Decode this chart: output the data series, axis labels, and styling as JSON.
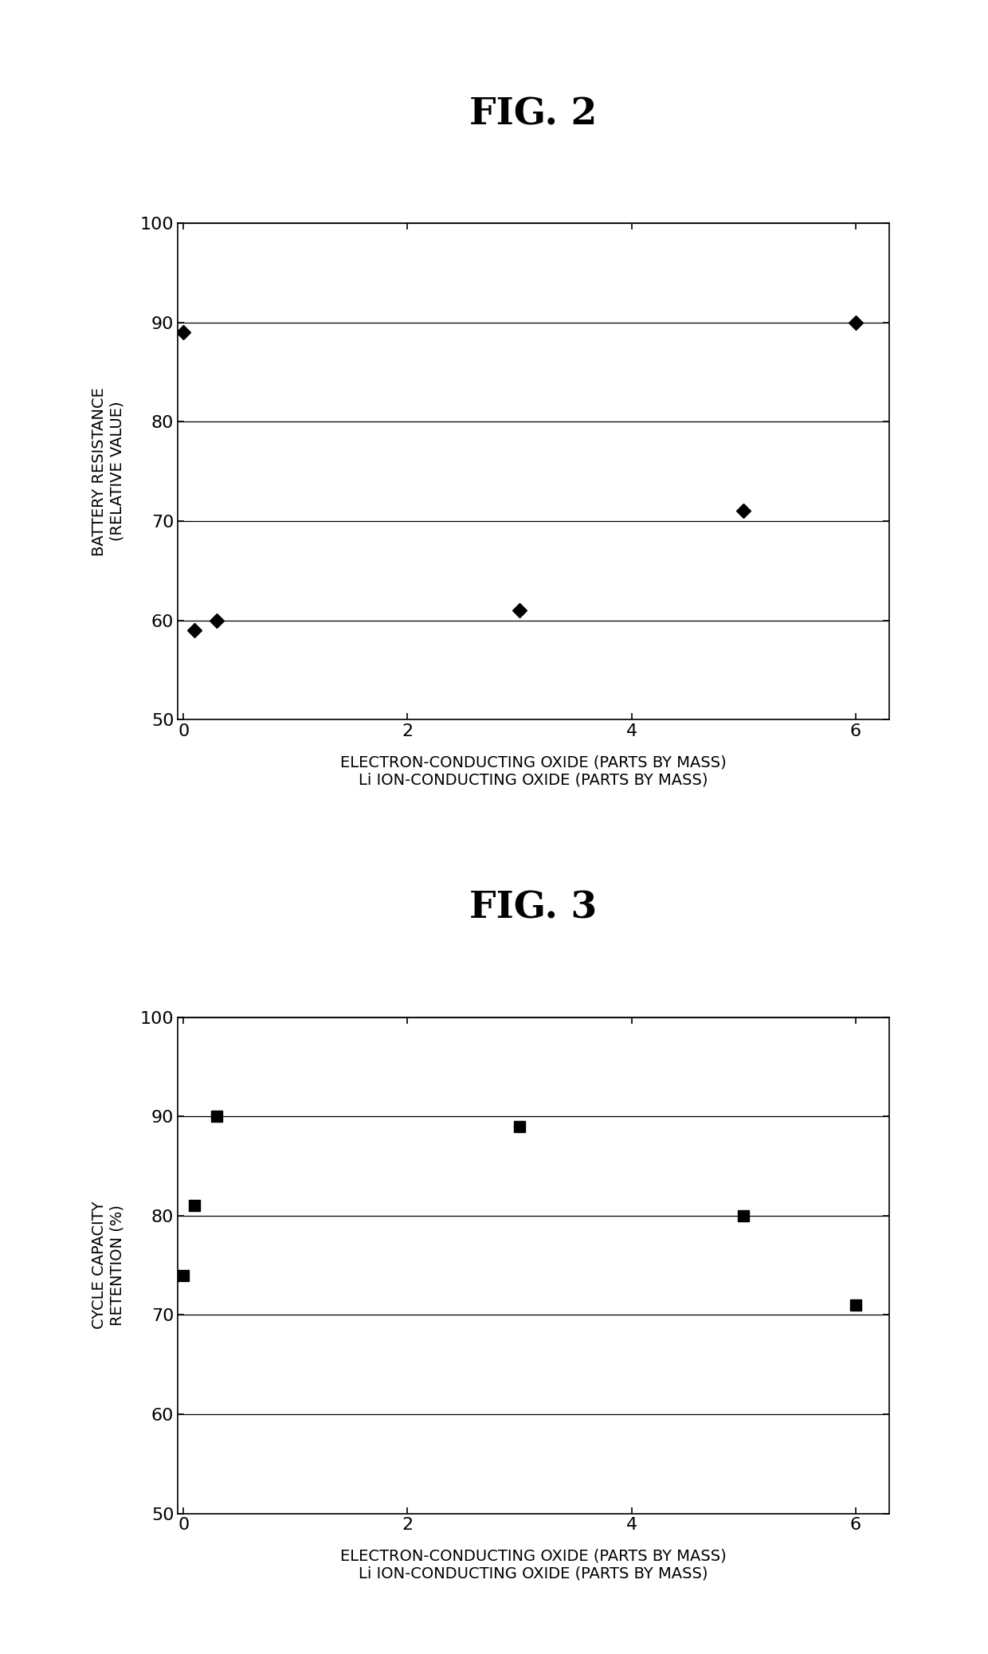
{
  "fig2": {
    "title": "FIG. 2",
    "x": [
      0,
      0.1,
      0.3,
      3,
      5,
      6
    ],
    "y": [
      89,
      59,
      60,
      61,
      71,
      90
    ],
    "xlabel_line1": "ELECTRON-CONDUCTING OXIDE (PARTS BY MASS)",
    "xlabel_line2": "Li ION-CONDUCTING OXIDE (PARTS BY MASS)",
    "ylabel_line1": "BATTERY RESISTANCE",
    "ylabel_line2": "(RELATIVE VALUE)",
    "xlim": [
      -0.05,
      6.3
    ],
    "ylim": [
      50,
      100
    ],
    "yticks": [
      50,
      60,
      70,
      80,
      90,
      100
    ],
    "xticks": [
      0,
      2,
      4,
      6
    ],
    "marker": "D",
    "markersize": 9,
    "color": "#000000"
  },
  "fig3": {
    "title": "FIG. 3",
    "x": [
      0,
      0.1,
      0.3,
      3,
      5,
      6
    ],
    "y": [
      74,
      81,
      90,
      89,
      80,
      71
    ],
    "xlabel_line1": "ELECTRON-CONDUCTING OXIDE (PARTS BY MASS)",
    "xlabel_line2": "Li ION-CONDUCTING OXIDE (PARTS BY MASS)",
    "ylabel_line1": "CYCLE CAPACITY",
    "ylabel_line2": "RETENTION (%)",
    "xlim": [
      -0.05,
      6.3
    ],
    "ylim": [
      50,
      100
    ],
    "yticks": [
      50,
      60,
      70,
      80,
      90,
      100
    ],
    "xticks": [
      0,
      2,
      4,
      6
    ],
    "marker": "s",
    "markersize": 10,
    "color": "#000000"
  },
  "background_color": "#ffffff",
  "title_fontsize": 34,
  "label_fontsize": 14,
  "tick_fontsize": 16
}
